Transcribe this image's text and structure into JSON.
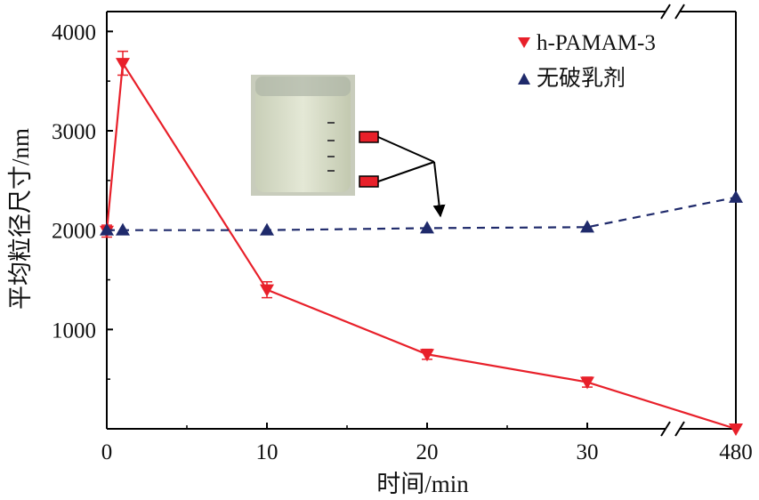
{
  "chart_data": {
    "type": "line",
    "title": "",
    "xlabel": "时间/min",
    "ylabel": "平均粒径尺寸/nm",
    "x_ticks": [
      "0",
      "10",
      "20",
      "30",
      "480"
    ],
    "y_ticks": [
      "1000",
      "2000",
      "3000",
      "4000"
    ],
    "x_axis_break": "between 30 and 480",
    "ylim": [
      0,
      4200
    ],
    "grid": false,
    "legend_position": "top-right",
    "series": [
      {
        "name": "h-PAMAM-3",
        "color": "#e8202a",
        "marker": "triangle-down",
        "line_style": "solid",
        "points": [
          {
            "x": "0",
            "y": 1990,
            "error": 60
          },
          {
            "x": "1",
            "y": 3680,
            "error": 120
          },
          {
            "x": "10",
            "y": 1400,
            "error": 80
          },
          {
            "x": "20",
            "y": 750,
            "error": 50
          },
          {
            "x": "30",
            "y": 470,
            "error": 50
          },
          {
            "x": "480",
            "y": 0,
            "error": 0
          }
        ]
      },
      {
        "name": "无破乳剂",
        "color": "#1f2a6b",
        "marker": "triangle-up",
        "line_style": "dashed",
        "points": [
          {
            "x": "0",
            "y": 2000
          },
          {
            "x": "1",
            "y": 2000
          },
          {
            "x": "10",
            "y": 2000
          },
          {
            "x": "20",
            "y": 2020
          },
          {
            "x": "30",
            "y": 2030
          },
          {
            "x": "480",
            "y": 2330
          }
        ]
      }
    ],
    "inset": {
      "content": "photo of a glass beaker with an emulsion, two red markers indicating layers, arrow pointing to the 无破乳剂 series"
    }
  }
}
